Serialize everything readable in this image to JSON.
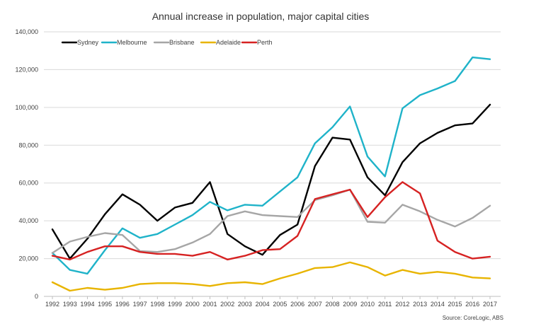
{
  "chart_data": {
    "type": "line",
    "title": "Annual increase in population, major capital cities",
    "xlabel": "",
    "ylabel": "",
    "source": "Source: CoreLogic, ABS",
    "categories": [
      "1992",
      "1993",
      "1994",
      "1995",
      "1996",
      "1997",
      "1998",
      "1999",
      "2000",
      "2001",
      "2002",
      "2003",
      "2004",
      "2005",
      "2006",
      "2007",
      "2008",
      "2009",
      "2010",
      "2011",
      "2012",
      "2013",
      "2014",
      "2015",
      "2016",
      "2017"
    ],
    "ylim": [
      0,
      140000
    ],
    "yticks": [
      0,
      20000,
      40000,
      60000,
      80000,
      100000,
      120000,
      140000
    ],
    "ytick_labels": [
      "0",
      "20,000",
      "40,000",
      "60,000",
      "80,000",
      "100,000",
      "120,000",
      "140,000"
    ],
    "grid": true,
    "legend_position": "top-left",
    "series": [
      {
        "name": "Sydney",
        "color": "#000000",
        "values": [
          35500,
          20000,
          30500,
          43500,
          54000,
          48500,
          40000,
          47000,
          49500,
          60500,
          33000,
          26500,
          22000,
          32500,
          38000,
          69000,
          84000,
          83000,
          63000,
          53500,
          71000,
          81000,
          86500,
          90500,
          91500,
          101500
        ]
      },
      {
        "name": "Melbourne",
        "color": "#1fb3c9",
        "values": [
          23000,
          14000,
          12000,
          24500,
          36000,
          31000,
          33000,
          38000,
          43000,
          50000,
          45500,
          48500,
          48000,
          55500,
          63000,
          81000,
          89500,
          100500,
          74000,
          63500,
          99500,
          106500,
          110000,
          114000,
          126500,
          125500
        ]
      },
      {
        "name": "Brisbane",
        "color": "#a6a6a6",
        "values": [
          23000,
          29000,
          31500,
          33500,
          32500,
          24000,
          23500,
          25000,
          28500,
          33000,
          42500,
          45000,
          43000,
          42500,
          42000,
          51000,
          53500,
          56500,
          39500,
          39000,
          48500,
          45000,
          40500,
          37000,
          41500,
          48000
        ]
      },
      {
        "name": "Adelaide",
        "color": "#e8b400",
        "values": [
          7500,
          3000,
          4500,
          3500,
          4500,
          6500,
          7000,
          7000,
          6500,
          5500,
          7000,
          7500,
          6500,
          9500,
          12000,
          15000,
          15500,
          18000,
          15500,
          11000,
          14000,
          12000,
          13000,
          12000,
          10000,
          9500
        ]
      },
      {
        "name": "Perth",
        "color": "#d62222",
        "values": [
          21500,
          19500,
          23500,
          26500,
          26500,
          23500,
          22500,
          22500,
          21500,
          23500,
          19500,
          21500,
          24500,
          25000,
          32000,
          51500,
          54000,
          56500,
          42000,
          52500,
          60500,
          54500,
          29500,
          23500,
          20000,
          21000
        ]
      }
    ]
  }
}
